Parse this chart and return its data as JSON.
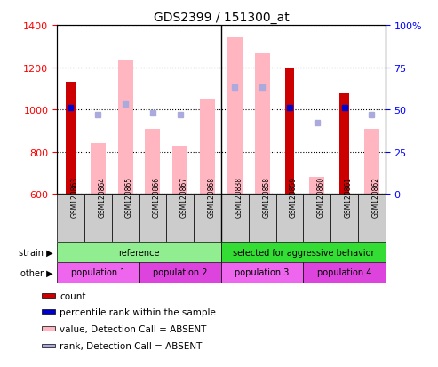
{
  "title": "GDS2399 / 151300_at",
  "samples": [
    "GSM120863",
    "GSM120864",
    "GSM120865",
    "GSM120866",
    "GSM120867",
    "GSM120868",
    "GSM120838",
    "GSM120858",
    "GSM120859",
    "GSM120860",
    "GSM120861",
    "GSM120862"
  ],
  "count_values": [
    1130,
    null,
    null,
    null,
    null,
    null,
    null,
    null,
    1200,
    null,
    1075,
    null
  ],
  "value_absent": [
    null,
    840,
    1230,
    910,
    830,
    1050,
    1340,
    1265,
    null,
    680,
    null,
    910
  ],
  "rank_absent": [
    null,
    47,
    53,
    48,
    47,
    null,
    63,
    63,
    null,
    42,
    null,
    47
  ],
  "percentile_present": [
    51,
    null,
    null,
    null,
    null,
    null,
    null,
    null,
    51,
    null,
    51,
    null
  ],
  "ylim_left": [
    600,
    1400
  ],
  "ylim_right": [
    0,
    100
  ],
  "yticks_left": [
    600,
    800,
    1000,
    1200,
    1400
  ],
  "yticks_right": [
    0,
    25,
    50,
    75,
    100
  ],
  "strain_groups": [
    {
      "label": "reference",
      "start": 0,
      "end": 6,
      "color": "#90EE90"
    },
    {
      "label": "selected for aggressive behavior",
      "start": 6,
      "end": 12,
      "color": "#33DD33"
    }
  ],
  "other_groups": [
    {
      "label": "population 1",
      "start": 0,
      "end": 3,
      "color": "#EE66EE"
    },
    {
      "label": "population 2",
      "start": 3,
      "end": 6,
      "color": "#DD44DD"
    },
    {
      "label": "population 3",
      "start": 6,
      "end": 9,
      "color": "#EE66EE"
    },
    {
      "label": "population 4",
      "start": 9,
      "end": 12,
      "color": "#DD44DD"
    }
  ],
  "bar_color_count": "#CC0000",
  "bar_color_absent": "#FFB6C1",
  "dot_color_percentile": "#0000CC",
  "dot_color_rank_absent": "#AAAADD",
  "legend_items": [
    {
      "label": "count",
      "color": "#CC0000"
    },
    {
      "label": "percentile rank within the sample",
      "color": "#0000CC"
    },
    {
      "label": "value, Detection Call = ABSENT",
      "color": "#FFB6C1"
    },
    {
      "label": "rank, Detection Call = ABSENT",
      "color": "#AAAADD"
    }
  ],
  "strain_label": "strain",
  "other_label": "other",
  "count_bar_width": 0.35,
  "absent_bar_width": 0.55,
  "gray_col_color": "#CCCCCC"
}
